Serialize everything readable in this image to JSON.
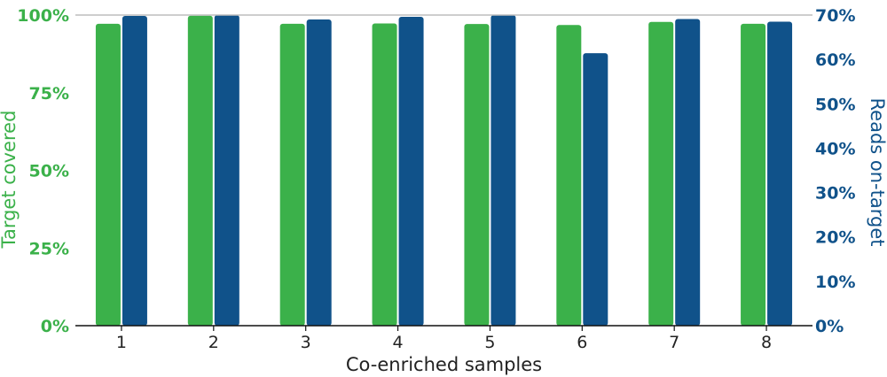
{
  "chart_data": {
    "type": "bar",
    "xlabel": "Co-enriched samples",
    "categories": [
      "1",
      "2",
      "3",
      "4",
      "5",
      "6",
      "7",
      "8"
    ],
    "y_left": {
      "label": "Target covered",
      "ticks": [
        "0%",
        "25%",
        "50%",
        "75%",
        "100%"
      ],
      "lim": [
        0,
        100
      ],
      "color": "#3bb14a"
    },
    "y_right": {
      "label": "Reads on-target",
      "ticks": [
        "0%",
        "10%",
        "20%",
        "30%",
        "40%",
        "50%",
        "60%",
        "70%"
      ],
      "lim": [
        0,
        70
      ],
      "color": "#10528a"
    },
    "series": [
      {
        "axis": "left",
        "color": "#3bb14a",
        "values": [
          97.2,
          99.8,
          97.2,
          97.3,
          97.1,
          96.8,
          97.8,
          97.2
        ]
      },
      {
        "axis": "right",
        "color": "#10528a",
        "values": [
          69.8,
          70.0,
          69.0,
          69.6,
          70.0,
          61.4,
          69.1,
          68.5
        ]
      }
    ],
    "grid": false,
    "legend": "none"
  }
}
